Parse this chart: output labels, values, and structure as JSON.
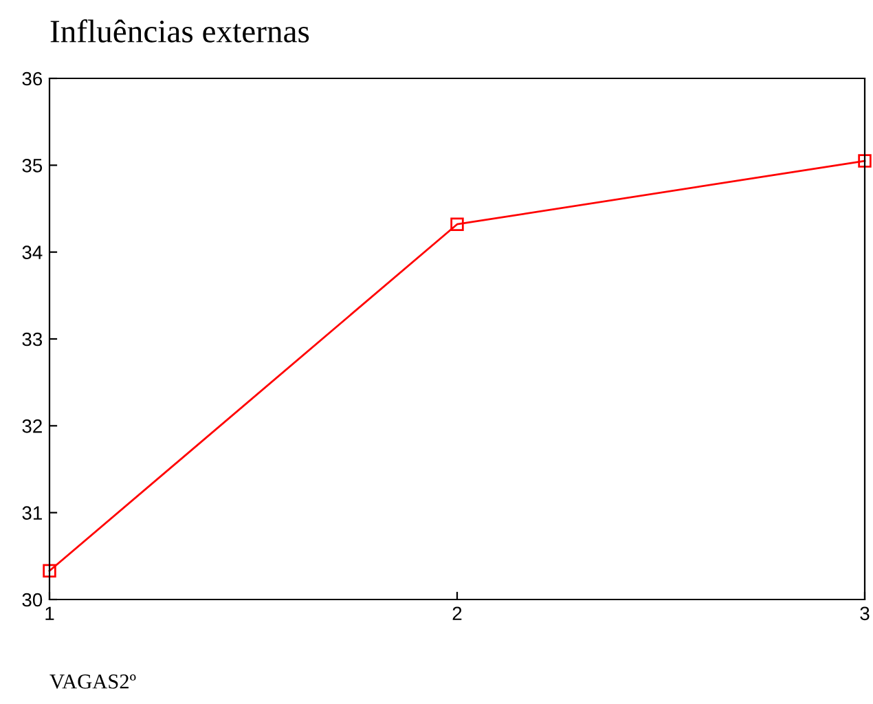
{
  "chart_data": {
    "type": "line",
    "title": "Influências externas",
    "xlabel": "VAGAS2º",
    "x": [
      1,
      2,
      3
    ],
    "series": [
      {
        "color": "#ff0000",
        "values": [
          30.33,
          34.32,
          35.05
        ]
      }
    ],
    "xlim": [
      1,
      3
    ],
    "xticks": [
      1,
      2,
      3
    ],
    "ylim": [
      30,
      36
    ],
    "yticks": [
      30,
      31,
      32,
      33,
      34,
      35,
      36
    ],
    "marker": "square",
    "line_style": "solid",
    "grid": false,
    "legend": false
  }
}
